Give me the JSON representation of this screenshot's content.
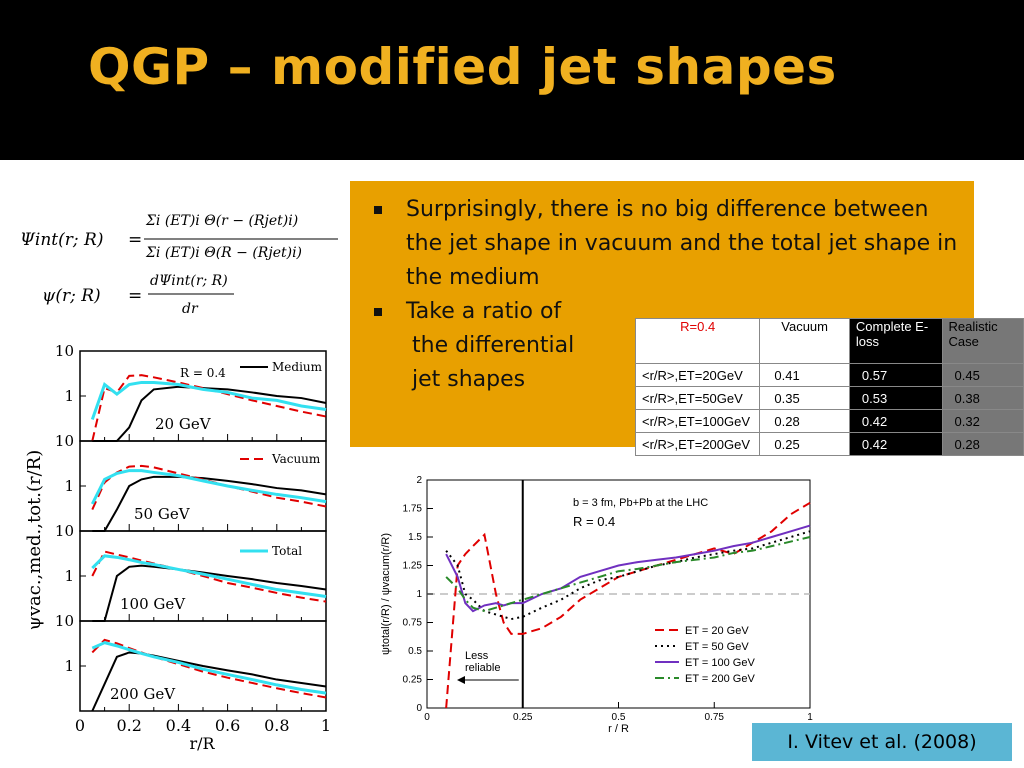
{
  "slide": {
    "title": "QGP – modified jet shapes",
    "bullets": [
      "Surprisingly, there is no big difference between the jet shape in vacuum and the total jet shape in the medium",
      "Take a ratio of"
    ],
    "bullet_continuation": [
      "the differential",
      "jet shapes"
    ],
    "credit": "I. Vitev et al. (2008)"
  },
  "formula": {
    "line1_lhs": "Ψint(r; R)",
    "line1_num": "Σi (ET)i Θ(r − (Rjet)i)",
    "line1_den": "Σi (ET)i Θ(R − (Rjet)i)",
    "line2_lhs": "ψ(r; R)",
    "line2_num": "dΨint(r; R)",
    "line2_den": "dr"
  },
  "table": {
    "header": [
      "R=0.4",
      "Vacuum",
      "Complete E-loss",
      "Realistic Case"
    ],
    "rows": [
      {
        "label": "<r/R>,ET=20GeV",
        "values": [
          "0.41",
          "0.57",
          "0.45"
        ]
      },
      {
        "label": "<r/R>,ET=50GeV",
        "values": [
          "0.35",
          "0.53",
          "0.38"
        ]
      },
      {
        "label": "<r/R>,ET=100GeV",
        "values": [
          "0.28",
          "0.42",
          "0.32"
        ]
      },
      {
        "label": "<r/R>,ET=200GeV",
        "values": [
          "0.25",
          "0.42",
          "0.28"
        ]
      }
    ]
  },
  "chart_data": [
    {
      "type": "line",
      "ylabel": "ψvac.,med.,tot.(r/R)",
      "xlabel": "r/R",
      "ylog": true,
      "xlim": [
        0,
        1
      ],
      "x_ticks": [
        "0",
        "0.2",
        "0.4",
        "0.6",
        "0.8",
        "1"
      ],
      "y_ticks": [
        "10",
        "1"
      ],
      "annotation": "R = 0.4",
      "legend": [
        {
          "name": "Medium",
          "color": "#000000",
          "dash": "solid"
        },
        {
          "name": "Vacuum",
          "color": "#e00000",
          "dash": "dashed"
        },
        {
          "name": "Total",
          "color": "#33e0f0",
          "dash": "solid"
        }
      ],
      "panels": [
        {
          "label": "20 GeV",
          "x": [
            0.05,
            0.1,
            0.15,
            0.2,
            0.25,
            0.3,
            0.4,
            0.5,
            0.6,
            0.7,
            0.8,
            0.9,
            1.0
          ],
          "series": [
            {
              "name": "Medium",
              "values": [
                0.1,
                0.1,
                0.1,
                0.2,
                0.8,
                1.4,
                1.6,
                1.5,
                1.4,
                1.2,
                1.0,
                0.9,
                0.7
              ]
            },
            {
              "name": "Vacuum",
              "values": [
                0.1,
                1.5,
                1.2,
                2.8,
                2.9,
                2.6,
                2.0,
                1.5,
                1.1,
                0.8,
                0.6,
                0.45,
                0.35
              ]
            },
            {
              "name": "Total",
              "values": [
                0.3,
                1.8,
                1.1,
                1.8,
                2.0,
                2.0,
                1.8,
                1.4,
                1.2,
                0.9,
                0.8,
                0.6,
                0.5
              ]
            }
          ]
        },
        {
          "label": "50 GeV",
          "x": [
            0.05,
            0.1,
            0.15,
            0.2,
            0.25,
            0.3,
            0.4,
            0.5,
            0.6,
            0.7,
            0.8,
            0.9,
            1.0
          ],
          "series": [
            {
              "name": "Medium",
              "values": [
                0.1,
                0.1,
                0.3,
                1.0,
                1.4,
                1.6,
                1.6,
                1.5,
                1.3,
                1.1,
                0.9,
                0.8,
                0.65
              ]
            },
            {
              "name": "Vacuum",
              "values": [
                0.3,
                1.2,
                2.0,
                2.7,
                2.8,
                2.6,
                1.9,
                1.4,
                1.0,
                0.75,
                0.55,
                0.45,
                0.35
              ]
            },
            {
              "name": "Total",
              "values": [
                0.4,
                1.4,
                1.9,
                2.2,
                2.2,
                2.0,
                1.7,
                1.3,
                1.0,
                0.8,
                0.65,
                0.55,
                0.45
              ]
            }
          ]
        },
        {
          "label": "100 GeV",
          "x": [
            0.05,
            0.1,
            0.15,
            0.2,
            0.25,
            0.3,
            0.4,
            0.5,
            0.6,
            0.7,
            0.8,
            0.9,
            1.0
          ],
          "series": [
            {
              "name": "Medium",
              "values": [
                0.1,
                0.1,
                1.0,
                1.6,
                1.7,
                1.6,
                1.4,
                1.2,
                1.0,
                0.85,
                0.7,
                0.6,
                0.5
              ]
            },
            {
              "name": "Vacuum",
              "values": [
                1.0,
                3.5,
                3.0,
                2.6,
                2.2,
                1.9,
                1.4,
                1.0,
                0.7,
                0.55,
                0.42,
                0.33,
                0.27
              ]
            },
            {
              "name": "Total",
              "values": [
                1.5,
                2.8,
                2.6,
                2.3,
                2.0,
                1.8,
                1.4,
                1.1,
                0.85,
                0.65,
                0.5,
                0.42,
                0.35
              ]
            }
          ]
        },
        {
          "label": "200 GeV",
          "x": [
            0.05,
            0.1,
            0.15,
            0.2,
            0.25,
            0.3,
            0.4,
            0.5,
            0.6,
            0.7,
            0.8,
            0.9,
            1.0
          ],
          "series": [
            {
              "name": "Medium",
              "values": [
                0.1,
                0.4,
                1.6,
                2.0,
                1.9,
                1.7,
                1.3,
                1.0,
                0.8,
                0.65,
                0.5,
                0.42,
                0.35
              ]
            },
            {
              "name": "Vacuum",
              "values": [
                2.0,
                3.8,
                3.2,
                2.5,
                2.0,
                1.6,
                1.1,
                0.75,
                0.55,
                0.42,
                0.32,
                0.25,
                0.2
              ]
            },
            {
              "name": "Total",
              "values": [
                2.5,
                3.3,
                2.8,
                2.3,
                1.9,
                1.6,
                1.2,
                0.85,
                0.65,
                0.5,
                0.38,
                0.3,
                0.25
              ]
            }
          ]
        }
      ]
    },
    {
      "type": "line",
      "ylabel": "ψtotal(r/R) / ψvacum(r/R)",
      "xlabel": "r / R",
      "xlim": [
        0,
        1
      ],
      "ylim": [
        0,
        2
      ],
      "x_ticks": [
        "0",
        "0.25",
        "0.5",
        "0.75",
        "1"
      ],
      "y_ticks": [
        "0",
        "0.25",
        "0.5",
        "0.75",
        "1",
        "1.25",
        "1.5",
        "1.75",
        "2"
      ],
      "annotations": [
        "b = 3 fm,  Pb+Pb at the LHC",
        "R = 0.4",
        "Less",
        "reliable"
      ],
      "x": [
        0.05,
        0.08,
        0.1,
        0.12,
        0.15,
        0.18,
        0.2,
        0.22,
        0.25,
        0.3,
        0.35,
        0.4,
        0.45,
        0.5,
        0.55,
        0.6,
        0.65,
        0.7,
        0.75,
        0.8,
        0.85,
        0.9,
        0.95,
        1.0
      ],
      "series": [
        {
          "name": "ET = 20 GeV",
          "color": "#e00000",
          "dash": "dashed",
          "values": [
            0.0,
            1.25,
            1.35,
            1.42,
            1.52,
            1.0,
            0.75,
            0.65,
            0.65,
            0.7,
            0.8,
            0.95,
            1.05,
            1.15,
            1.2,
            1.25,
            1.3,
            1.35,
            1.4,
            1.35,
            1.45,
            1.55,
            1.7,
            1.8
          ]
        },
        {
          "name": "ET = 50 GeV",
          "color": "#000000",
          "dash": "dotted",
          "values": [
            1.38,
            1.25,
            1.0,
            0.95,
            0.85,
            0.82,
            0.8,
            0.78,
            0.8,
            0.88,
            0.95,
            1.05,
            1.12,
            1.15,
            1.2,
            1.25,
            1.28,
            1.32,
            1.35,
            1.38,
            1.4,
            1.45,
            1.5,
            1.55
          ]
        },
        {
          "name": "ET = 100 GeV",
          "color": "#7030c0",
          "dash": "solid",
          "values": [
            1.35,
            1.15,
            0.92,
            0.85,
            0.9,
            0.92,
            0.9,
            0.92,
            0.92,
            1.0,
            1.05,
            1.15,
            1.2,
            1.25,
            1.28,
            1.3,
            1.32,
            1.35,
            1.38,
            1.42,
            1.45,
            1.5,
            1.55,
            1.6
          ]
        },
        {
          "name": "ET = 200 GeV",
          "color": "#2a8a2a",
          "dash": "dashdot",
          "values": [
            1.15,
            1.05,
            0.95,
            0.88,
            0.85,
            0.88,
            0.9,
            0.92,
            0.95,
            1.0,
            1.05,
            1.1,
            1.15,
            1.2,
            1.22,
            1.25,
            1.28,
            1.3,
            1.32,
            1.36,
            1.38,
            1.42,
            1.46,
            1.5
          ]
        }
      ]
    }
  ]
}
